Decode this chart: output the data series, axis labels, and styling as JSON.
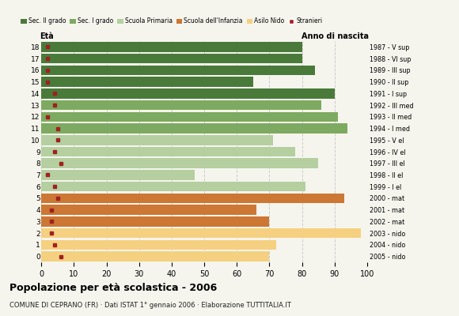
{
  "ages": [
    18,
    17,
    16,
    15,
    14,
    13,
    12,
    11,
    10,
    9,
    8,
    7,
    6,
    5,
    4,
    3,
    2,
    1,
    0
  ],
  "bar_values": [
    80,
    80,
    84,
    65,
    90,
    86,
    91,
    94,
    71,
    78,
    85,
    47,
    81,
    93,
    66,
    70,
    98,
    72,
    70
  ],
  "stranieri": [
    2,
    2,
    2,
    2,
    4,
    4,
    2,
    5,
    5,
    4,
    6,
    2,
    4,
    5,
    3,
    3,
    3,
    4,
    6
  ],
  "bar_colors": [
    "#4a7a3a",
    "#4a7a3a",
    "#4a7a3a",
    "#4a7a3a",
    "#4a7a3a",
    "#7daa60",
    "#7daa60",
    "#7daa60",
    "#b5cfa0",
    "#b5cfa0",
    "#b5cfa0",
    "#b5cfa0",
    "#b5cfa0",
    "#cc7733",
    "#cc7733",
    "#cc7733",
    "#f5d080",
    "#f5d080",
    "#f5d080"
  ],
  "right_labels": [
    "1987 - V sup",
    "1988 - VI sup",
    "1989 - III sup",
    "1990 - II sup",
    "1991 - I sup",
    "1992 - III med",
    "1993 - II med",
    "1994 - I med",
    "1995 - V el",
    "1996 - IV el",
    "1997 - III el",
    "1998 - II el",
    "1999 - I el",
    "2000 - mat",
    "2001 - mat",
    "2002 - mat",
    "2003 - nido",
    "2004 - nido",
    "2005 - nido"
  ],
  "title": "Popolazione per età scolastica - 2006",
  "subtitle": "COMUNE DI CEPRANO (FR) · Dati ISTAT 1° gennaio 2006 · Elaborazione TUTTITALIA.IT",
  "xlabel_left": "Età",
  "xlabel_right": "Anno di nascita",
  "legend_labels": [
    "Sec. II grado",
    "Sec. I grado",
    "Scuola Primaria",
    "Scuola dell'Infanzia",
    "Asilo Nido",
    "Stranieri"
  ],
  "legend_colors": [
    "#4a7a3a",
    "#7daa60",
    "#b5cfa0",
    "#cc7733",
    "#f5d080",
    "#a02020"
  ],
  "stranieri_color": "#a02020",
  "bg_color": "#f5f5ee",
  "grid_color": "#cccccc",
  "xlim": [
    0,
    100
  ]
}
